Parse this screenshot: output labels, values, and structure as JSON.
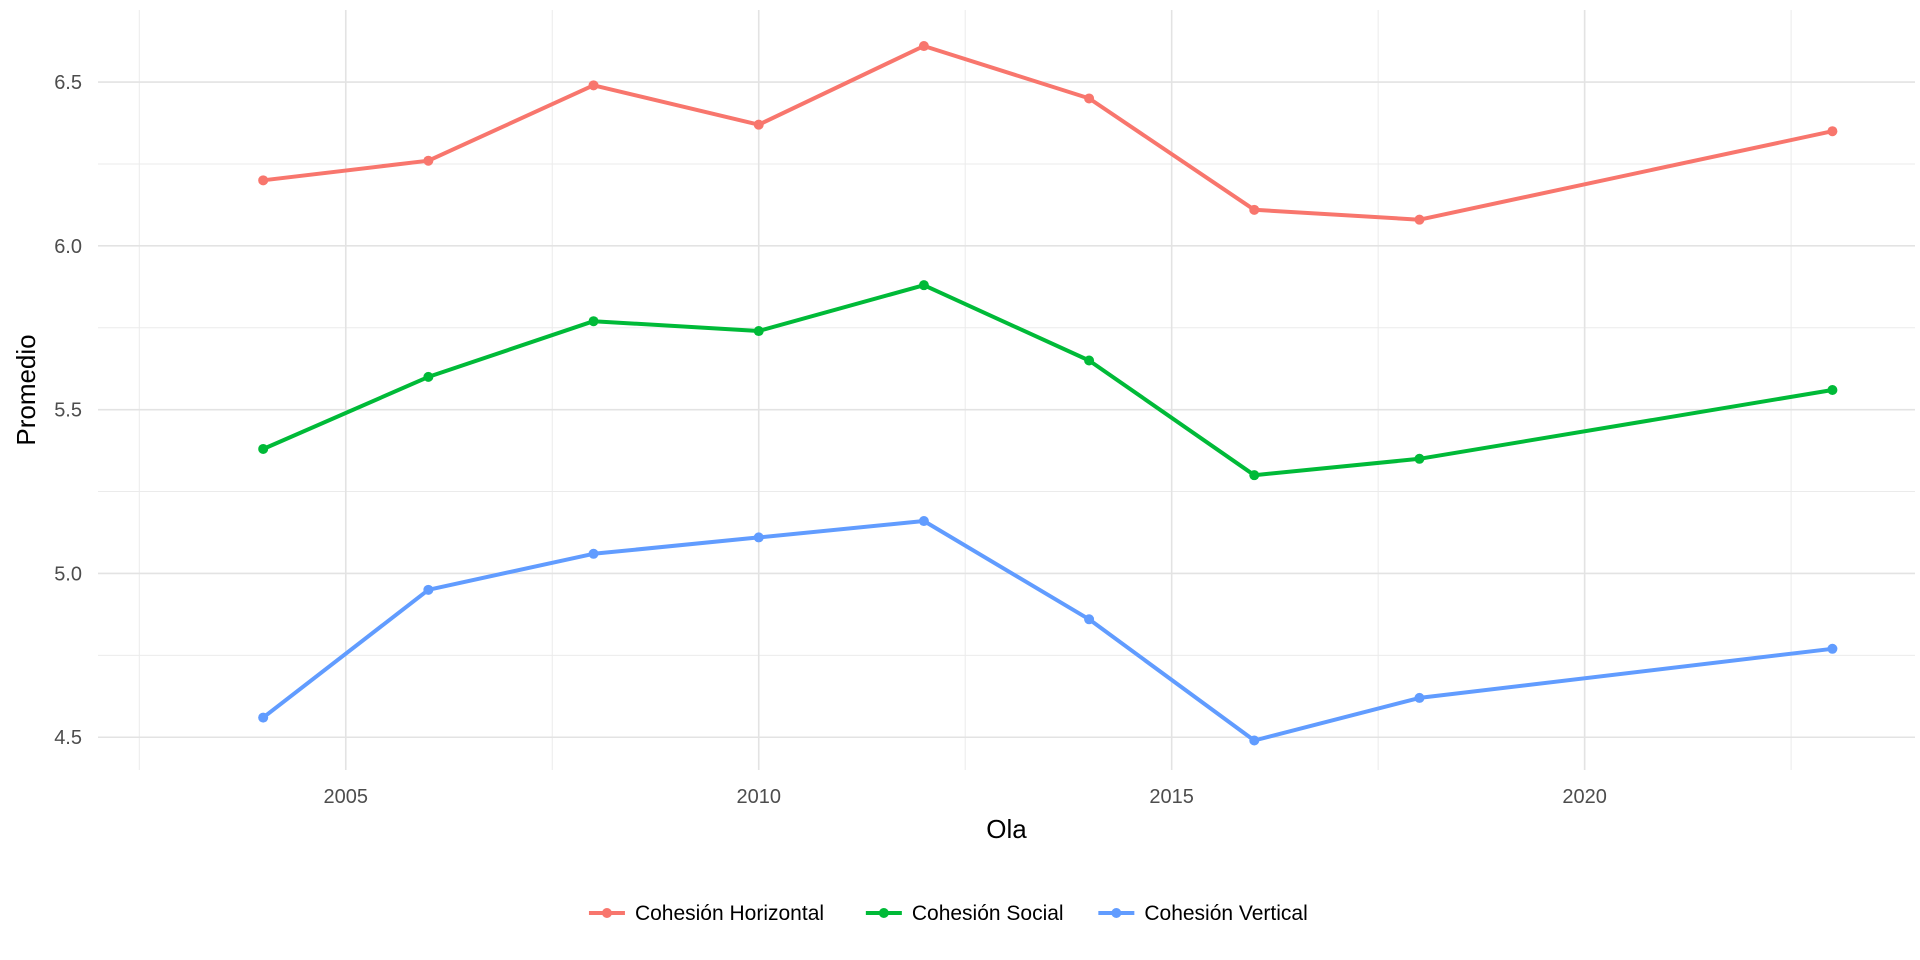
{
  "chart_data": {
    "type": "line",
    "title": "",
    "xlabel": "Ola",
    "ylabel": "Promedio",
    "x": [
      2004,
      2006,
      2008,
      2010,
      2012,
      2014,
      2016,
      2018,
      2023
    ],
    "xlim": [
      2002.0,
      2024.0
    ],
    "ylim": [
      4.4,
      6.72
    ],
    "x_ticks": [
      2005,
      2010,
      2015,
      2020
    ],
    "x_tick_labels": [
      "2005",
      "2010",
      "2015",
      "2020"
    ],
    "y_ticks": [
      4.5,
      5.0,
      5.5,
      6.0,
      6.5
    ],
    "y_tick_labels": [
      "4.5",
      "5.0",
      "5.5",
      "6.0",
      "6.5"
    ],
    "grid": true,
    "legend_position": "bottom",
    "series": [
      {
        "name": "Cohesión Horizontal",
        "color": "#F8766D",
        "values": [
          6.2,
          6.26,
          6.49,
          6.37,
          6.61,
          6.45,
          6.11,
          6.08,
          6.35
        ]
      },
      {
        "name": "Cohesión Social",
        "color": "#00BA38",
        "values": [
          5.38,
          5.6,
          5.77,
          5.74,
          5.88,
          5.65,
          5.3,
          5.35,
          5.56
        ]
      },
      {
        "name": "Cohesión Vertical",
        "color": "#619CFF",
        "values": [
          4.56,
          4.95,
          5.06,
          5.11,
          5.16,
          4.86,
          4.49,
          4.62,
          4.77
        ]
      }
    ]
  }
}
